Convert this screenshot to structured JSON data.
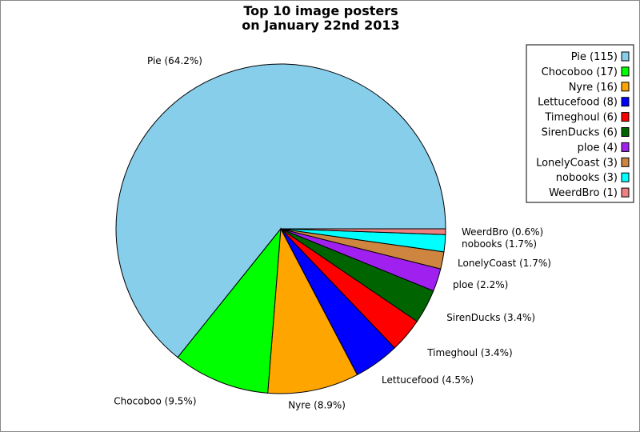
{
  "chart_data": {
    "type": "pie",
    "title_lines": [
      "Top 10 image posters",
      "on January 22nd 2013"
    ],
    "slices": [
      {
        "name": "Pie",
        "value": 115,
        "percent_label": "Pie (64.2%)",
        "legend_label": "Pie (115)",
        "color": "#87CEEB"
      },
      {
        "name": "Chocoboo",
        "value": 17,
        "percent_label": "Chocoboo (9.5%)",
        "legend_label": "Chocoboo (17)",
        "color": "#00FF00"
      },
      {
        "name": "Nyre",
        "value": 16,
        "percent_label": "Nyre (8.9%)",
        "legend_label": "Nyre (16)",
        "color": "#FFA500"
      },
      {
        "name": "Lettucefood",
        "value": 8,
        "percent_label": "Lettucefood (4.5%)",
        "legend_label": "Lettucefood (8)",
        "color": "#0000FF"
      },
      {
        "name": "Timeghoul",
        "value": 6,
        "percent_label": "Timeghoul (3.4%)",
        "legend_label": "Timeghoul (6)",
        "color": "#FF0000"
      },
      {
        "name": "SirenDucks",
        "value": 6,
        "percent_label": "SirenDucks (3.4%)",
        "legend_label": "SirenDucks (6)",
        "color": "#006400"
      },
      {
        "name": "ploe",
        "value": 4,
        "percent_label": "ploe (2.2%)",
        "legend_label": "ploe (4)",
        "color": "#A020F0"
      },
      {
        "name": "LonelyCoast",
        "value": 3,
        "percent_label": "LonelyCoast (1.7%)",
        "legend_label": "LonelyCoast (3)",
        "color": "#CD853F"
      },
      {
        "name": "nobooks",
        "value": 3,
        "percent_label": "nobooks (1.7%)",
        "legend_label": "nobooks (3)",
        "color": "#00FFFF"
      },
      {
        "name": "WeerdBro",
        "value": 1,
        "percent_label": "WeerdBro (0.6%)",
        "legend_label": "WeerdBro (1)",
        "color": "#F08080"
      }
    ],
    "legend_position": "top-right",
    "start_angle": "3 o'clock, counter-clockwise"
  }
}
